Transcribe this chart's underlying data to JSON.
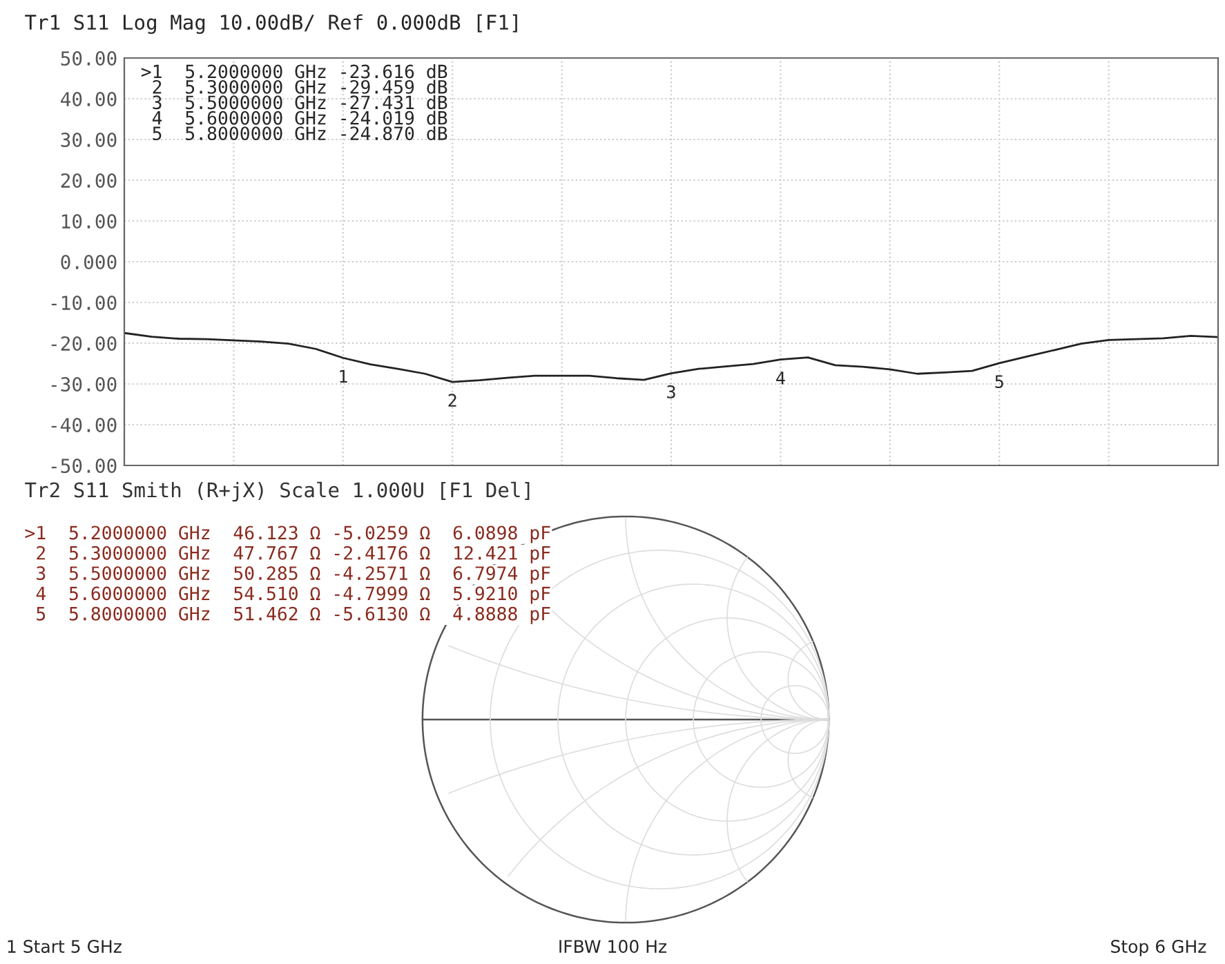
{
  "chart_data": [
    {
      "type": "line",
      "title": "Tr1 S11 Log Mag 10.00dB/ Ref 0.000dB [F1]",
      "categories": [
        null,
        null,
        null,
        null,
        null,
        null,
        null,
        null,
        null,
        null,
        null,
        null,
        null,
        null,
        null,
        null,
        null,
        null,
        null,
        null,
        null,
        null,
        null,
        null,
        null,
        null,
        null,
        null,
        null,
        null,
        null,
        null,
        null,
        null,
        null,
        null,
        null,
        null,
        null,
        null,
        null
      ],
      "series": [
        {
          "color": "#222222",
          "values": [
            -17.5,
            -18.4,
            -18.9,
            -19.0,
            -19.3,
            -19.6,
            -20.1,
            -21.4,
            -23.6,
            -25.2,
            -26.3,
            -27.5,
            -29.5,
            -29.1,
            -28.5,
            -28.0,
            -28.0,
            -28.0,
            -28.6,
            -29.0,
            -27.4,
            -26.3,
            -25.7,
            -25.1,
            -24.0,
            -23.5,
            -25.4,
            -25.8,
            -26.4,
            -27.5,
            -27.2,
            -26.8,
            -24.9,
            -23.3,
            -21.7,
            -20.1,
            -19.2,
            -19.0,
            -18.8,
            -18.2,
            -18.5
          ]
        }
      ],
      "ylim": [
        -50,
        50
      ],
      "yticks": [
        {
          "value": -50,
          "label": "-50.00"
        },
        {
          "value": -40,
          "label": "-40.00"
        },
        {
          "value": -30,
          "label": "-30.00"
        },
        {
          "value": -20,
          "label": "-20.00"
        },
        {
          "value": -10,
          "label": "-10.00"
        },
        {
          "value": 0,
          "label": "0.000"
        },
        {
          "value": 10,
          "label": "10.00"
        },
        {
          "value": 20,
          "label": "20.00"
        },
        {
          "value": 30,
          "label": "30.00"
        },
        {
          "value": 40,
          "label": "40.00"
        },
        {
          "value": 50,
          "label": "50.00"
        }
      ],
      "tick_labels": "y",
      "grid": true,
      "marker": "none",
      "line_style": "solid",
      "legend": false,
      "annotations": [
        ">1  5.2000000 GHz -23.616 dB",
        " 2  5.3000000 GHz -29.459 dB",
        " 3  5.5000000 GHz -27.431 dB",
        " 4  5.6000000 GHz -24.019 dB",
        " 5  5.8000000 GHz -24.870 dB",
        {
          "text": "1",
          "y": -23.6
        },
        {
          "text": "2",
          "y": -29.5
        },
        {
          "text": "3",
          "y": -27.4
        },
        {
          "text": "4",
          "y": -24.0
        },
        {
          "text": "5",
          "y": -24.9
        }
      ]
    },
    {
      "type": "other",
      "title": "Tr2 S11 Smith (R+jX) Scale 1.000U [F1 Del]",
      "annotations": [
        ">1  5.2000000 GHz  46.123 Ω -5.0259 Ω  6.0898 pF",
        " 2  5.3000000 GHz  47.767 Ω -2.4176 Ω  12.421 pF",
        " 3  5.5000000 GHz  50.285 Ω -4.2571 Ω  6.7974 pF",
        " 4  5.6000000 GHz  54.510 Ω -4.7999 Ω  5.9210 pF",
        " 5  5.8000000 GHz  51.462 Ω -5.6130 Ω  4.8888 pF",
        "1 Start 5 GHz",
        "IFBW 100 Hz",
        "Stop 6 GHz"
      ]
    }
  ]
}
